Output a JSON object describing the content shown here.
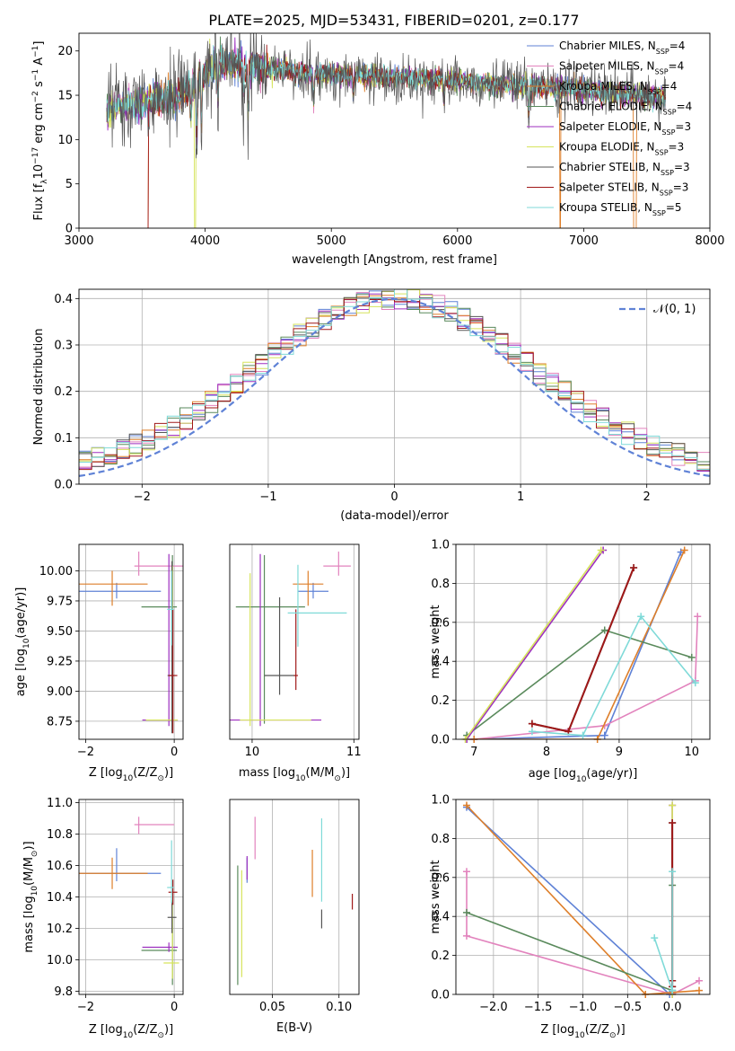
{
  "figure": {
    "title": "PLATE=2025, MJD=53431, FIBERID=0201, z=0.177"
  },
  "models": [
    {
      "name": "Chabrier MILES",
      "nssp": "4",
      "color": "#5f82d6"
    },
    {
      "name": "Salpeter MILES",
      "nssp": "4",
      "color": "#e283bd"
    },
    {
      "name": "Kroupa MILES",
      "nssp": "4",
      "color": "#de7f2a"
    },
    {
      "name": "Chabrier ELODIE",
      "nssp": "4",
      "color": "#5a8a5c"
    },
    {
      "name": "Salpeter ELODIE",
      "nssp": "3",
      "color": "#9d2fbf"
    },
    {
      "name": "Kroupa ELODIE",
      "nssp": "3",
      "color": "#d6e45c"
    },
    {
      "name": "Chabrier STELIB",
      "nssp": "3",
      "color": "#555555"
    },
    {
      "name": "Salpeter STELIB",
      "nssp": "3",
      "color": "#a01818"
    },
    {
      "name": "Kroupa STELIB",
      "nssp": "5",
      "color": "#7fdad8"
    }
  ],
  "chart_data": [
    {
      "id": "spectrum",
      "type": "line",
      "xlabel": "wavelength [Angstrom, rest frame]",
      "ylabel_pre": "Flux [f",
      "ylabel_sub": "λ",
      "ylabel_mid": "10",
      "ylabel_sup1": "−17",
      "ylabel_post": " erg cm",
      "ylabel_sup2": "−2",
      "ylabel_post2": " s",
      "ylabel_sup3": "−1",
      "ylabel_post3": " A",
      "ylabel_sup4": "−1",
      "ylabel_end": "]",
      "xlim": [
        3000,
        8000
      ],
      "ylim": [
        0,
        22
      ],
      "xticks": [
        "3000",
        "4000",
        "5000",
        "6000",
        "7000",
        "8000"
      ],
      "yticks": [
        "0",
        "5",
        "10",
        "15",
        "20"
      ],
      "legend_loc": "upper right",
      "data_range": [
        3220,
        7650
      ],
      "continuum": [
        [
          3220,
          13.5
        ],
        [
          3400,
          14.0
        ],
        [
          3600,
          14.5
        ],
        [
          3800,
          15.0
        ],
        [
          3950,
          17.0
        ],
        [
          4100,
          18.5
        ],
        [
          4400,
          18.3
        ],
        [
          4800,
          17.5
        ],
        [
          5200,
          17.2
        ],
        [
          5600,
          17.0
        ],
        [
          6000,
          16.7
        ],
        [
          6400,
          16.2
        ],
        [
          6800,
          15.8
        ],
        [
          7200,
          15.3
        ],
        [
          7650,
          14.8
        ]
      ],
      "drops": [
        [
          3545,
          3800,
          1
        ],
        [
          3915,
          3930,
          7
        ]
      ]
    },
    {
      "id": "residuals",
      "type": "step",
      "xlabel": "(data-model)/error",
      "ylabel": "Normed distribution",
      "xlim": [
        -2.5,
        2.5
      ],
      "ylim": [
        0,
        0.42
      ],
      "xticks": [
        "−2",
        "−1",
        "0",
        "1",
        "2"
      ],
      "yticks": [
        "0.0",
        "0.1",
        "0.2",
        "0.3",
        "0.4"
      ],
      "legend": "𝒩(0, 1)",
      "legend_loc": "upper right",
      "bins": [
        -2.5,
        2.5,
        50
      ]
    },
    {
      "id": "age_vs_Z",
      "type": "errorbar",
      "xlabel_pre": "Z [log",
      "xlabel_sub": "10",
      "xlabel_post": "(Z/Z",
      "xlabel_end": ")]",
      "ylabel": "age  [log₁₀(age/yr)]",
      "xlim": [
        -2.15,
        0.2
      ],
      "ylim": [
        8.6,
        10.22
      ],
      "xticks": [
        "−2",
        "0"
      ],
      "yticks": [
        "8.75",
        "9.00",
        "9.25",
        "9.50",
        "9.75",
        "10.00"
      ],
      "points": [
        {
          "m": 0,
          "x": -1.3,
          "xe": [
            1.0,
            1.0
          ],
          "y": 9.83,
          "ye": [
            0.06,
            0.07
          ]
        },
        {
          "m": 1,
          "x": -0.8,
          "xe": [
            0.1,
            1.0
          ],
          "y": 10.04,
          "ye": [
            0.08,
            0.12
          ]
        },
        {
          "m": 2,
          "x": -1.4,
          "xe": [
            0.8,
            0.8
          ],
          "y": 9.89,
          "ye": [
            0.18,
            0.11
          ]
        },
        {
          "m": 3,
          "x": -0.04,
          "xe": [
            0.7,
            0.1
          ],
          "y": 9.7,
          "ye": [
            0.97,
            0.43
          ]
        },
        {
          "m": 4,
          "x": -0.12,
          "xe": [
            0.6,
            0.2
          ],
          "y": 8.76,
          "ye": [
            0.05,
            1.38
          ]
        },
        {
          "m": 5,
          "x": -0.04,
          "xe": [
            0.6,
            0.12
          ],
          "y": 8.76,
          "ye": [
            0.05,
            1.28
          ]
        },
        {
          "m": 6,
          "x": -0.05,
          "xe": [
            0.1,
            0.05
          ],
          "y": 9.13,
          "ye": [
            0.48,
            0.95
          ]
        },
        {
          "m": 7,
          "x": -0.03,
          "xe": [
            0.1,
            0.1
          ],
          "y": 9.13,
          "ye": [
            0.48,
            0.55
          ]
        },
        {
          "m": 8,
          "x": -0.06,
          "xe": [
            0.1,
            0.05
          ],
          "y": 9.68,
          "ye": [
            0.3,
            0.32
          ]
        }
      ]
    },
    {
      "id": "age_vs_mass",
      "type": "errorbar",
      "xlabel_pre": "mass [log",
      "xlabel_sub": "10",
      "xlabel_post": "(M/M",
      "xlabel_end": ")]",
      "xlim": [
        9.78,
        11.05
      ],
      "ylim": [
        8.6,
        10.22
      ],
      "xticks": [
        "10",
        "11"
      ],
      "yticks": [],
      "points": [
        {
          "m": 0,
          "x": 10.6,
          "xe": [
            0.15,
            0.15
          ],
          "y": 9.83,
          "ye": [
            0.06,
            0.07
          ]
        },
        {
          "m": 1,
          "x": 10.85,
          "xe": [
            0.15,
            0.12
          ],
          "y": 10.04,
          "ye": [
            0.08,
            0.12
          ]
        },
        {
          "m": 2,
          "x": 10.55,
          "xe": [
            0.15,
            0.15
          ],
          "y": 9.89,
          "ye": [
            0.18,
            0.11
          ]
        },
        {
          "m": 3,
          "x": 10.12,
          "xe": [
            0.28,
            0.4
          ],
          "y": 9.7,
          "ye": [
            0.97,
            0.43
          ]
        },
        {
          "m": 4,
          "x": 10.08,
          "xe": [
            0.3,
            0.6
          ],
          "y": 8.76,
          "ye": [
            0.05,
            1.38
          ]
        },
        {
          "m": 5,
          "x": 9.98,
          "xe": [
            0.1,
            0.6
          ],
          "y": 8.76,
          "ye": [
            0.05,
            1.22
          ]
        },
        {
          "m": 6,
          "x": 10.27,
          "xe": [
            0.15,
            0.15
          ],
          "y": 9.13,
          "ye": [
            0.16,
            0.65
          ]
        },
        {
          "m": 7,
          "x": 10.43,
          "xe": [
            0.02,
            0.02
          ],
          "y": 9.13,
          "ye": [
            0.12,
            0.55
          ]
        },
        {
          "m": 8,
          "x": 10.45,
          "xe": [
            0.1,
            0.48
          ],
          "y": 9.65,
          "ye": [
            0.28,
            0.4
          ]
        }
      ]
    },
    {
      "id": "mw_vs_age",
      "type": "line",
      "xlabel": "age  [log₁₀(age/yr)]",
      "ylabel": "mass weight",
      "xlim": [
        6.75,
        10.25
      ],
      "ylim": [
        0,
        1
      ],
      "xticks": [
        "7",
        "8",
        "9",
        "10"
      ],
      "yticks": [
        "0.0",
        "0.2",
        "0.4",
        "0.6",
        "0.8",
        "1.0"
      ],
      "series": [
        {
          "m": 0,
          "x": [
            7.0,
            8.8,
            9.85
          ],
          "y": [
            0.0,
            0.02,
            0.96
          ]
        },
        {
          "m": 1,
          "x": [
            7.0,
            8.8,
            10.05,
            10.08
          ],
          "y": [
            0.0,
            0.07,
            0.3,
            0.63
          ]
        },
        {
          "m": 2,
          "x": [
            7.0,
            8.7,
            9.9
          ],
          "y": [
            0.0,
            0.0,
            0.97
          ]
        },
        {
          "m": 3,
          "x": [
            6.9,
            8.8,
            10.0
          ],
          "y": [
            0.02,
            0.56,
            0.42
          ]
        },
        {
          "m": 4,
          "x": [
            6.9,
            8.78
          ],
          "y": [
            0.0,
            0.97
          ]
        },
        {
          "m": 5,
          "x": [
            6.88,
            8.75
          ],
          "y": [
            0.0,
            0.97
          ]
        },
        {
          "m": 6,
          "x": [
            7.8,
            8.3,
            9.2
          ],
          "y": [
            0.08,
            0.04,
            0.88
          ]
        },
        {
          "m": 7,
          "x": [
            7.8,
            8.3,
            9.2
          ],
          "y": [
            0.08,
            0.04,
            0.88
          ]
        },
        {
          "m": 8,
          "x": [
            7.8,
            8.5,
            9.3,
            10.05
          ],
          "y": [
            0.04,
            0.02,
            0.63,
            0.29
          ]
        }
      ]
    },
    {
      "id": "mass_vs_Z",
      "type": "errorbar",
      "xlabel_pre": "Z [log",
      "xlabel_sub": "10",
      "xlabel_post": "(Z/Z",
      "xlabel_end": ")]",
      "ylabel_pre": "mass [log",
      "ylabel_sub": "10",
      "ylabel_post": "(M/M",
      "ylabel_end": ")]",
      "xlim": [
        -2.15,
        0.2
      ],
      "ylim": [
        9.78,
        11.02
      ],
      "xticks": [
        "−2",
        "0"
      ],
      "yticks": [
        "9.8",
        "10.0",
        "10.2",
        "10.4",
        "10.6",
        "10.8",
        "11.0"
      ],
      "points": [
        {
          "m": 0,
          "x": -1.3,
          "xe": [
            1.0,
            1.0
          ],
          "y": 10.55,
          "ye": [
            0.05,
            0.16
          ]
        },
        {
          "m": 1,
          "x": -0.8,
          "xe": [
            0.1,
            0.8
          ],
          "y": 10.86,
          "ye": [
            0.06,
            0.05
          ]
        },
        {
          "m": 2,
          "x": -1.4,
          "xe": [
            0.8,
            0.8
          ],
          "y": 10.55,
          "ye": [
            0.1,
            0.1
          ]
        },
        {
          "m": 3,
          "x": -0.04,
          "xe": [
            0.7,
            0.1
          ],
          "y": 10.06,
          "ye": [
            0.22,
            0.2
          ]
        },
        {
          "m": 4,
          "x": -0.12,
          "xe": [
            0.6,
            0.2
          ],
          "y": 10.08,
          "ye": [
            0.03,
            0.03
          ]
        },
        {
          "m": 5,
          "x": -0.04,
          "xe": [
            0.2,
            0.15
          ],
          "y": 9.98,
          "ye": [
            0.1,
            0.4
          ]
        },
        {
          "m": 6,
          "x": -0.05,
          "xe": [
            0.1,
            0.1
          ],
          "y": 10.27,
          "ye": [
            0.1,
            0.1
          ]
        },
        {
          "m": 7,
          "x": -0.03,
          "xe": [
            0.1,
            0.1
          ],
          "y": 10.43,
          "ye": [
            0.08,
            0.08
          ]
        },
        {
          "m": 8,
          "x": -0.06,
          "xe": [
            0.1,
            0.05
          ],
          "y": 10.46,
          "ye": [
            0.1,
            0.3
          ]
        }
      ]
    },
    {
      "id": "mass_vs_ebv",
      "type": "errorbar",
      "xlabel": "E(B-V)",
      "xlim": [
        0.018,
        0.115
      ],
      "ylim": [
        9.78,
        11.02
      ],
      "xticks": [
        "0.05",
        "0.10"
      ],
      "yticks": [],
      "points": [
        {
          "m": 0,
          "x": 0.031,
          "xe": [
            0,
            0
          ],
          "y": 10.55,
          "ye": [
            0.06,
            0.1
          ]
        },
        {
          "m": 1,
          "x": 0.037,
          "xe": [
            0,
            0
          ],
          "y": 10.78,
          "ye": [
            0.14,
            0.13
          ]
        },
        {
          "m": 2,
          "x": 0.08,
          "xe": [
            0,
            0
          ],
          "y": 10.55,
          "ye": [
            0.15,
            0.15
          ]
        },
        {
          "m": 3,
          "x": 0.024,
          "xe": [
            0,
            0
          ],
          "y": 10.2,
          "ye": [
            0.36,
            0.4
          ]
        },
        {
          "m": 4,
          "x": 0.031,
          "xe": [
            0,
            0
          ],
          "y": 10.58,
          "ye": [
            0.07,
            0.08
          ]
        },
        {
          "m": 5,
          "x": 0.027,
          "xe": [
            0,
            0
          ],
          "y": 10.25,
          "ye": [
            0.36,
            0.32
          ]
        },
        {
          "m": 6,
          "x": 0.087,
          "xe": [
            0,
            0
          ],
          "y": 10.26,
          "ye": [
            0.06,
            0.06
          ]
        },
        {
          "m": 7,
          "x": 0.11,
          "xe": [
            0,
            0
          ],
          "y": 10.37,
          "ye": [
            0.05,
            0.05
          ]
        },
        {
          "m": 8,
          "x": 0.087,
          "xe": [
            0,
            0
          ],
          "y": 10.65,
          "ye": [
            0.28,
            0.25
          ]
        }
      ]
    },
    {
      "id": "mw_vs_Z",
      "type": "line",
      "xlabel_pre": "Z [log",
      "xlabel_sub": "10",
      "xlabel_post": "(Z/Z",
      "xlabel_end": ")]",
      "ylabel": "mass weight",
      "xlim": [
        -2.42,
        0.42
      ],
      "ylim": [
        0,
        1
      ],
      "xticks": [
        "−2.0",
        "−1.5",
        "−1.0",
        "−0.5",
        "0.0"
      ],
      "yticks": [
        "0.0",
        "0.2",
        "0.4",
        "0.6",
        "0.8",
        "1.0"
      ],
      "series": [
        {
          "m": 0,
          "x": [
            -2.3,
            -0.03,
            0.0
          ],
          "y": [
            0.96,
            0.0,
            0.02
          ]
        },
        {
          "m": 1,
          "x": [
            -2.3,
            -2.3,
            0.0,
            0.3
          ],
          "y": [
            0.63,
            0.3,
            0.0,
            0.07
          ]
        },
        {
          "m": 2,
          "x": [
            -2.3,
            -0.3,
            0.3
          ],
          "y": [
            0.97,
            0.0,
            0.02
          ]
        },
        {
          "m": 3,
          "x": [
            -2.3,
            0.0,
            0.0
          ],
          "y": [
            0.42,
            0.02,
            0.56
          ]
        },
        {
          "m": 4,
          "x": [
            0.0,
            0.0
          ],
          "y": [
            0.0,
            0.97
          ]
        },
        {
          "m": 5,
          "x": [
            0.0,
            0.0
          ],
          "y": [
            0.0,
            0.97
          ]
        },
        {
          "m": 6,
          "x": [
            0.0,
            0.0,
            0.0
          ],
          "y": [
            0.07,
            0.04,
            0.88
          ]
        },
        {
          "m": 7,
          "x": [
            0.0,
            0.0,
            0.0
          ],
          "y": [
            0.07,
            0.04,
            0.88
          ]
        },
        {
          "m": 8,
          "x": [
            -0.2,
            0.0,
            0.0
          ],
          "y": [
            0.29,
            0.02,
            0.63
          ]
        }
      ]
    }
  ]
}
